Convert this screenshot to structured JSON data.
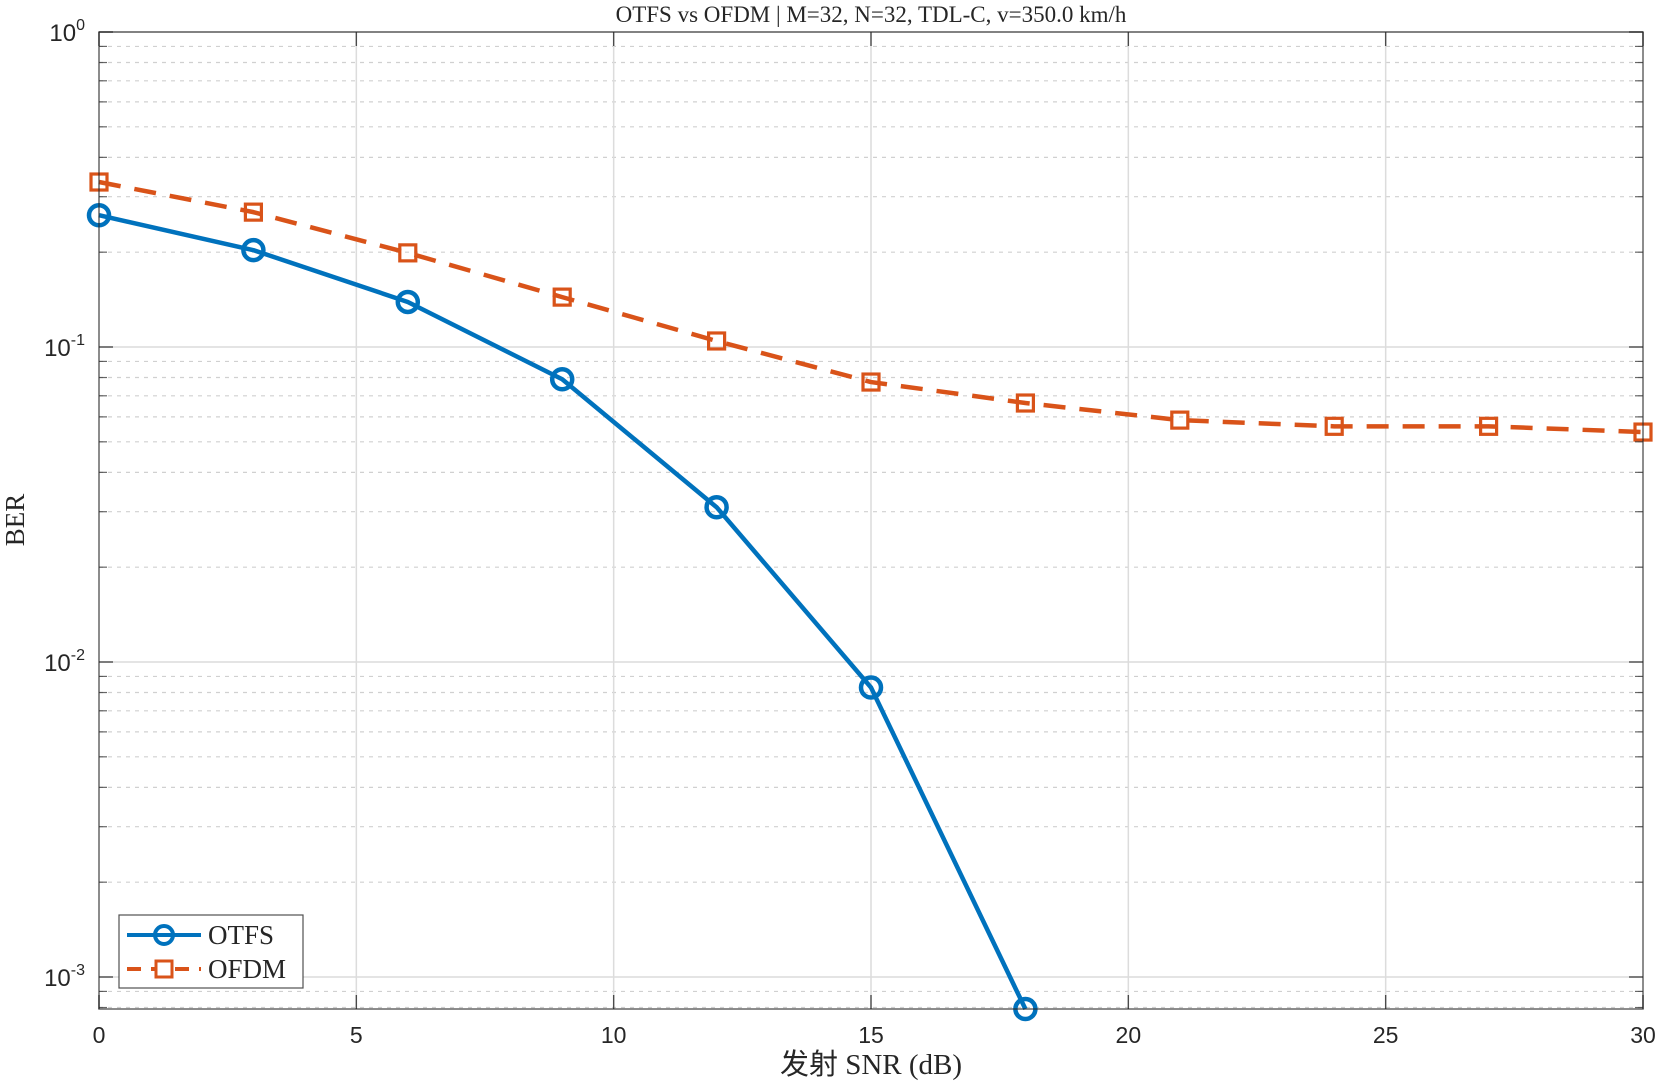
{
  "chart_data": {
    "type": "line",
    "title": "OTFS vs OFDM | M=32, N=32, TDL-C, v=350.0 km/h",
    "xlabel": "发射 SNR (dB)",
    "ylabel": "BER",
    "yscale": "log",
    "xlim": [
      0,
      30
    ],
    "ylim": [
      0.00079,
      1
    ],
    "grid": true,
    "minor_grid": true,
    "legend_position": "lower left",
    "x_ticks": [
      0,
      5,
      10,
      15,
      20,
      25,
      30
    ],
    "x_tick_labels": [
      "0",
      "5",
      "10",
      "15",
      "20",
      "25",
      "30"
    ],
    "y_ticks": [
      1,
      0.1,
      0.01,
      0.001
    ],
    "y_tick_labels": [
      {
        "base": "10",
        "exp": "0"
      },
      {
        "base": "10",
        "exp": "-1"
      },
      {
        "base": "10",
        "exp": "-2"
      },
      {
        "base": "10",
        "exp": "-3"
      }
    ],
    "series": [
      {
        "name": "OTFS",
        "color": "#0072BD",
        "line_style": "solid",
        "marker": "circle",
        "x": [
          0,
          3,
          6,
          9,
          12,
          15,
          18
        ],
        "values": [
          0.262,
          0.203,
          0.139,
          0.079,
          0.031,
          0.0083,
          0.00079
        ]
      },
      {
        "name": "OFDM",
        "color": "#D95319",
        "line_style": "dashed",
        "marker": "square",
        "x": [
          0,
          3,
          6,
          9,
          12,
          15,
          18,
          21,
          24,
          27,
          30
        ],
        "values": [
          0.334,
          0.268,
          0.199,
          0.144,
          0.1045,
          0.0774,
          0.0664,
          0.0586,
          0.056,
          0.056,
          0.0537
        ]
      }
    ]
  },
  "legend": {
    "items": [
      {
        "label": "OTFS"
      },
      {
        "label": "OFDM"
      }
    ]
  }
}
